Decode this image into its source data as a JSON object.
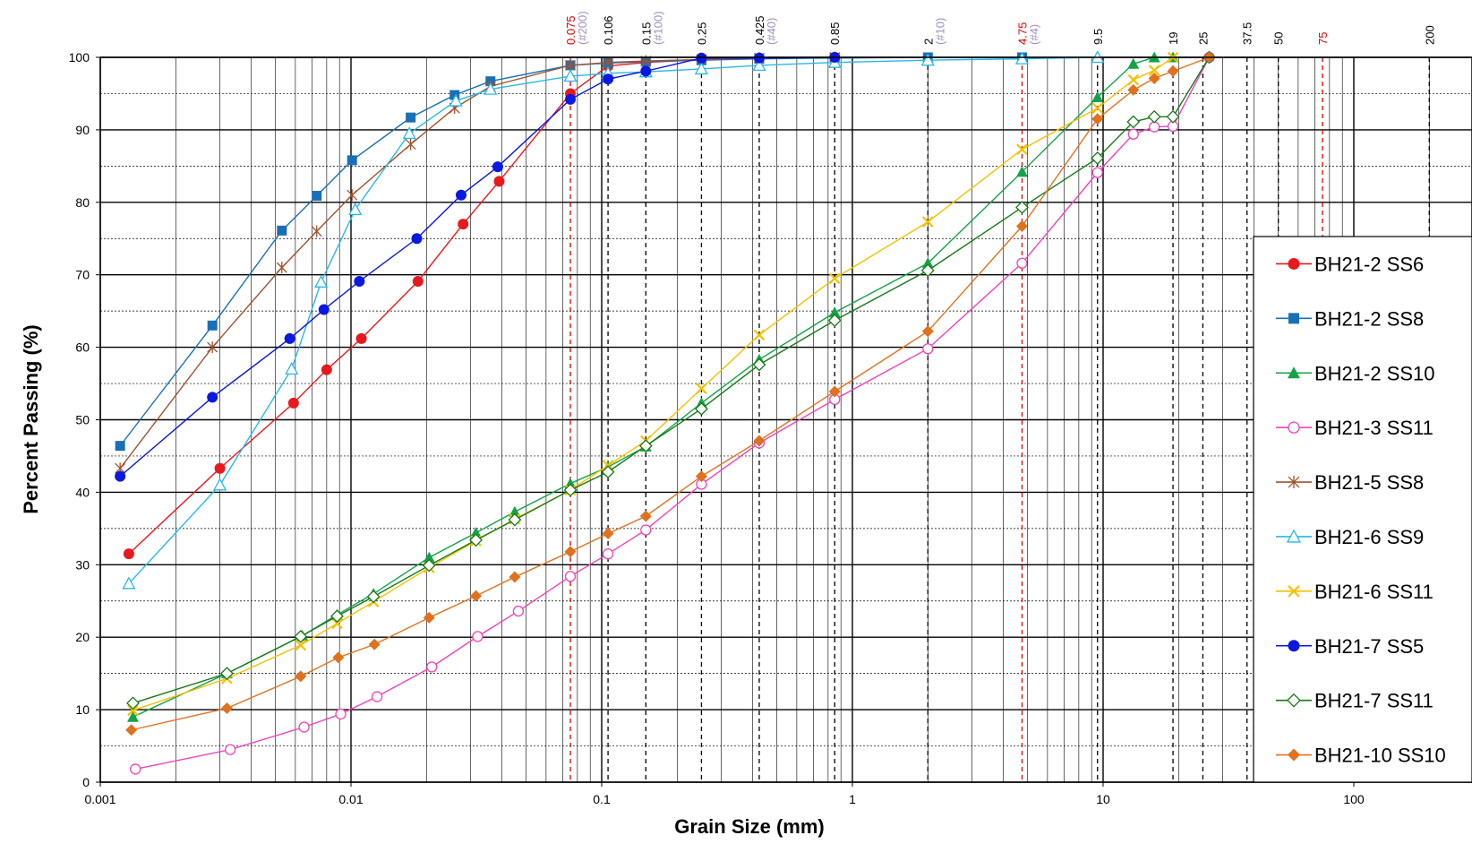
{
  "chart_data": {
    "type": "scatter",
    "xscale": "log",
    "xlabel": "Grain Size   (mm)",
    "ylabel": "Percent Passing     (%)",
    "xlim": [
      0.001,
      250
    ],
    "ylim": [
      0,
      100
    ],
    "x_ticks": [
      {
        "value": 0.001,
        "label": "0.001"
      },
      {
        "value": 0.01,
        "label": "0.01"
      },
      {
        "value": 0.1,
        "label": "0.1"
      },
      {
        "value": 1,
        "label": "1"
      },
      {
        "value": 10,
        "label": "10"
      },
      {
        "value": 100,
        "label": "100"
      }
    ],
    "y_ticks": [
      {
        "value": 0,
        "label": "0"
      },
      {
        "value": 10,
        "label": "10"
      },
      {
        "value": 20,
        "label": "20"
      },
      {
        "value": 30,
        "label": "30"
      },
      {
        "value": 40,
        "label": "40"
      },
      {
        "value": 50,
        "label": "50"
      },
      {
        "value": 60,
        "label": "60"
      },
      {
        "value": 70,
        "label": "70"
      },
      {
        "value": 80,
        "label": "80"
      },
      {
        "value": 90,
        "label": "90"
      },
      {
        "value": 100,
        "label": "100"
      }
    ],
    "sieve_lines": [
      {
        "value": 0.075,
        "label": "0.075",
        "sub": "(#200)",
        "color": "#e00000"
      },
      {
        "value": 0.106,
        "label": "0.106",
        "sub": "",
        "color": "#000000"
      },
      {
        "value": 0.15,
        "label": "0.15",
        "sub": "(#100)",
        "color": "#000000"
      },
      {
        "value": 0.25,
        "label": "0.25",
        "sub": "",
        "color": "#000000"
      },
      {
        "value": 0.425,
        "label": "0.425",
        "sub": "(#40)",
        "color": "#000000"
      },
      {
        "value": 0.85,
        "label": "0.85",
        "sub": "",
        "color": "#000000"
      },
      {
        "value": 2,
        "label": "2",
        "sub": "(#10)",
        "color": "#000000"
      },
      {
        "value": 4.75,
        "label": "4.75",
        "sub": "(#4)",
        "color": "#e00000"
      },
      {
        "value": 9.5,
        "label": "9.5",
        "sub": "",
        "color": "#000000"
      },
      {
        "value": 19,
        "label": "19",
        "sub": "",
        "color": "#000000"
      },
      {
        "value": 25,
        "label": "25",
        "sub": "",
        "color": "#000000"
      },
      {
        "value": 37.5,
        "label": "37.5",
        "sub": "",
        "color": "#000000"
      },
      {
        "value": 50,
        "label": "50",
        "sub": "",
        "color": "#000000"
      },
      {
        "value": 75,
        "label": "75",
        "sub": "",
        "color": "#e00000"
      },
      {
        "value": 200,
        "label": "200",
        "sub": "",
        "color": "#000000"
      }
    ],
    "sieve_sub_color": "#a090c0",
    "grid": true,
    "legend_position": "right",
    "series": [
      {
        "name": "BH21-2 SS6",
        "color": "#e8191e",
        "marker": "circle-filled",
        "x": [
          0.0013,
          0.003,
          0.0059,
          0.008,
          0.011,
          0.0185,
          0.028,
          0.039,
          0.075,
          0.106,
          0.15,
          0.25,
          0.425,
          0.85
        ],
        "y": [
          31.5,
          43.3,
          52.3,
          56.9,
          61.2,
          69.1,
          77.0,
          82.9,
          95.0,
          98.8,
          99.3,
          99.7,
          99.9,
          100
        ]
      },
      {
        "name": "BH21-2 SS8",
        "color": "#1a6fb6",
        "marker": "square-filled",
        "x": [
          0.0012,
          0.0028,
          0.0053,
          0.0073,
          0.0101,
          0.0173,
          0.0259,
          0.036,
          0.075,
          0.106,
          0.15,
          0.25,
          0.425,
          0.85,
          2,
          4.75
        ],
        "y": [
          46.4,
          63.0,
          76.1,
          80.9,
          85.8,
          91.7,
          94.8,
          96.7,
          98.9,
          99.2,
          99.4,
          99.6,
          99.8,
          99.9,
          100,
          100
        ]
      },
      {
        "name": "BH21-2 SS10",
        "color": "#14a348",
        "marker": "triangle-filled",
        "x": [
          0.00135,
          0.0032,
          0.0064,
          0.0088,
          0.0123,
          0.0205,
          0.0315,
          0.045,
          0.075,
          0.106,
          0.15,
          0.25,
          0.425,
          0.85,
          2,
          4.75,
          9.5,
          13.2,
          16,
          19
        ],
        "y": [
          9.0,
          15.0,
          20.2,
          23.1,
          26.0,
          31.0,
          34.4,
          37.3,
          41.2,
          43.5,
          46.3,
          52.3,
          58.3,
          64.8,
          71.6,
          84.2,
          94.5,
          99.1,
          100,
          100
        ]
      },
      {
        "name": "BH21-3 SS11",
        "color": "#ee44bb",
        "marker": "circle-open",
        "x": [
          0.00138,
          0.0033,
          0.0065,
          0.0091,
          0.0127,
          0.021,
          0.032,
          0.0465,
          0.075,
          0.106,
          0.15,
          0.25,
          0.425,
          0.85,
          2,
          4.75,
          9.5,
          13.2,
          16,
          19,
          26.5
        ],
        "y": [
          1.8,
          4.5,
          7.6,
          9.4,
          11.8,
          15.9,
          20.1,
          23.6,
          28.4,
          31.5,
          34.8,
          41.1,
          46.8,
          52.8,
          59.8,
          71.6,
          84.1,
          89.4,
          90.4,
          90.5,
          100
        ]
      },
      {
        "name": "BH21-5 SS8",
        "color": "#a0522d",
        "marker": "star",
        "x": [
          0.0012,
          0.0028,
          0.0053,
          0.0073,
          0.0101,
          0.0173,
          0.0259,
          0.036,
          0.075,
          0.106,
          0.15,
          0.25,
          0.425,
          0.85
        ],
        "y": [
          43.3,
          60.0,
          71.0,
          76.0,
          81.0,
          88.0,
          93.0,
          96.0,
          98.9,
          99.3,
          99.5,
          99.7,
          99.9,
          100
        ]
      },
      {
        "name": "BH21-6 SS9",
        "color": "#29b8e8",
        "marker": "triangle-open",
        "x": [
          0.0013,
          0.003,
          0.0058,
          0.0076,
          0.0104,
          0.0171,
          0.0262,
          0.036,
          0.075,
          0.106,
          0.15,
          0.25,
          0.425,
          0.85,
          2,
          4.75,
          9.5
        ],
        "y": [
          27.4,
          41.0,
          57.0,
          69.0,
          79.0,
          89.5,
          94.0,
          95.6,
          97.4,
          97.8,
          98.0,
          98.4,
          98.9,
          99.3,
          99.6,
          99.8,
          100
        ]
      },
      {
        "name": "BH21-6 SS11",
        "color": "#f5c000",
        "marker": "x",
        "x": [
          0.00135,
          0.0032,
          0.0063,
          0.0088,
          0.0123,
          0.0205,
          0.0315,
          0.045,
          0.075,
          0.106,
          0.15,
          0.25,
          0.425,
          0.85,
          2,
          4.75,
          9.5,
          13.2,
          16,
          19
        ],
        "y": [
          9.9,
          14.3,
          18.9,
          21.9,
          24.9,
          29.6,
          33.3,
          36.3,
          40.3,
          43.7,
          47.1,
          54.3,
          61.7,
          69.5,
          77.3,
          87.3,
          93.0,
          96.9,
          98.2,
          100
        ]
      },
      {
        "name": "BH21-7 SS5",
        "color": "#0a18e0",
        "marker": "circle-filled",
        "x": [
          0.0012,
          0.0028,
          0.0057,
          0.0078,
          0.0108,
          0.0183,
          0.0275,
          0.0385,
          0.075,
          0.106,
          0.15,
          0.25,
          0.425,
          0.85
        ],
        "y": [
          42.2,
          53.1,
          61.2,
          65.2,
          69.1,
          75.0,
          81.0,
          84.9,
          94.2,
          97.0,
          98.1,
          99.9,
          99.9,
          100
        ]
      },
      {
        "name": "BH21-7 SS11",
        "color": "#167a16",
        "marker": "diamond-open",
        "x": [
          0.00135,
          0.0032,
          0.0063,
          0.0088,
          0.0123,
          0.0205,
          0.0315,
          0.045,
          0.075,
          0.106,
          0.15,
          0.25,
          0.425,
          0.85,
          2,
          4.75,
          9.5,
          13.2,
          16,
          19,
          26.5
        ],
        "y": [
          10.9,
          15.0,
          20.1,
          22.9,
          25.6,
          29.9,
          33.4,
          36.2,
          40.3,
          42.8,
          46.4,
          51.5,
          57.6,
          63.7,
          70.6,
          79.3,
          86.1,
          91.1,
          91.8,
          91.8,
          100
        ]
      },
      {
        "name": "BH21-10 SS10",
        "color": "#e0711e",
        "marker": "diamond-filled",
        "x": [
          0.00133,
          0.0032,
          0.0063,
          0.0089,
          0.0124,
          0.0205,
          0.0315,
          0.045,
          0.075,
          0.106,
          0.15,
          0.25,
          0.425,
          0.85,
          2,
          4.75,
          9.5,
          13.2,
          16,
          19,
          26.5
        ],
        "y": [
          7.2,
          10.2,
          14.6,
          17.2,
          19.0,
          22.7,
          25.7,
          28.3,
          31.8,
          34.3,
          36.7,
          42.2,
          47.1,
          53.9,
          62.2,
          76.7,
          91.5,
          95.5,
          97.1,
          98.1,
          100
        ]
      }
    ]
  }
}
